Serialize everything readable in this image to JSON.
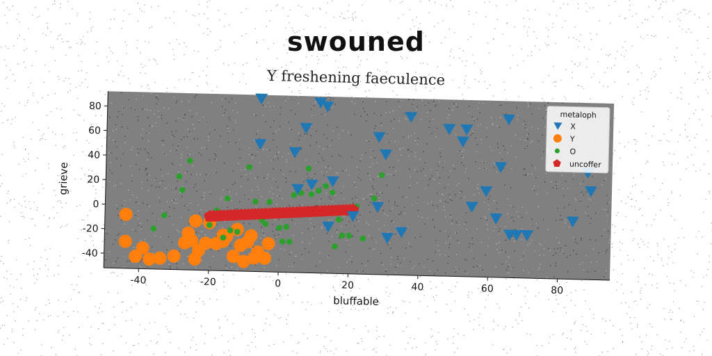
{
  "chart_data": {
    "type": "scatter",
    "title": "swouned",
    "subtitle": "Y freshening faeculence",
    "xlabel": "bluffable",
    "ylabel": "grieve",
    "xlim": [
      -50,
      95
    ],
    "ylim": [
      -52,
      92
    ],
    "xticks": [
      -40,
      -20,
      0,
      20,
      40,
      60,
      80
    ],
    "yticks": [
      -40,
      -20,
      0,
      20,
      40,
      60,
      80
    ],
    "grid": false,
    "legend": {
      "title": "metaloph",
      "placement": "top-right"
    },
    "colors": {
      "X": "#1f77b4",
      "Y": "#ff7f0e",
      "O": "#2ca02c",
      "uncoffer": "#d62728",
      "plot_bg": "#808080"
    },
    "series": [
      {
        "name": "X",
        "marker": "triangle-down",
        "x": [
          -6,
          11,
          13,
          -6,
          7,
          4,
          5,
          9,
          15,
          14,
          21,
          28,
          30,
          28,
          35,
          31,
          37,
          48,
          53,
          52,
          65,
          63,
          59,
          55,
          62,
          66,
          68,
          71,
          84,
          88,
          89
        ],
        "y": [
          89,
          87,
          84,
          52,
          66,
          46,
          16,
          20,
          23,
          -14,
          -5,
          60,
          46,
          3,
          -17,
          -22,
          77,
          68,
          68,
          58,
          77,
          38,
          18,
          5,
          -4,
          -17,
          -17,
          -17,
          -5,
          35,
          20
        ]
      },
      {
        "name": "Y",
        "marker": "circle",
        "x": [
          -44,
          -44,
          -41,
          -39,
          -37,
          -34,
          -30,
          -27,
          -25,
          -24,
          -23,
          -21,
          -18,
          -16,
          -15,
          -13,
          -11,
          -10,
          -9,
          -8,
          -7,
          -6,
          -4,
          -24,
          -20,
          -12,
          -16,
          -26,
          -3
        ],
        "y": [
          -8,
          -30,
          -42,
          -35,
          -44,
          -43,
          -41,
          -30,
          -28,
          -43,
          -36,
          -30,
          -30,
          -28,
          -24,
          -40,
          -31,
          -44,
          -28,
          -23,
          -41,
          -36,
          -41,
          -12,
          -13,
          -18,
          -23,
          -22,
          -29
        ]
      },
      {
        "name": "O",
        "marker": "point",
        "x": [
          -26,
          -29,
          -28,
          -36,
          -33,
          -18,
          -16,
          -14,
          -9,
          -7,
          -4,
          -3,
          0,
          1,
          3,
          4,
          6,
          8,
          9,
          11,
          13,
          15,
          16,
          18,
          20,
          22,
          24,
          27,
          29,
          -20,
          -12,
          -5,
          5,
          17,
          -15,
          2
        ],
        "y": [
          37,
          24,
          13,
          -19,
          -8,
          -3,
          -25,
          -19,
          33,
          5,
          -13,
          5,
          -16,
          -27,
          -27,
          11,
          13,
          33,
          12,
          15,
          19,
          14,
          -30,
          -21,
          -21,
          3,
          -23,
          10,
          29,
          -15,
          -20,
          -10,
          -5,
          -8,
          7,
          -15
        ]
      },
      {
        "name": "uncoffer",
        "marker": "pentagon",
        "x": [
          -20.0,
          -19.0,
          -18.0,
          -17.0,
          -16.0,
          -15.0,
          -14.0,
          -13.0,
          -12.0,
          -11.0,
          -10.0,
          -9.0,
          -8.0,
          -7.0,
          -6.0,
          -5.0,
          -4.0,
          -3.0,
          -2.0,
          -1.0,
          0.0,
          1.0,
          2.0,
          3.0,
          4.0,
          5.0,
          6.0,
          7.0,
          8.0,
          9.0,
          10.0,
          11.0,
          12.0,
          13.0,
          14.0,
          15.0,
          16.0,
          17.0,
          18.0,
          19.0,
          20.0,
          21.0
        ],
        "y": [
          -8.0,
          -7.8,
          -7.6,
          -7.4,
          -7.2,
          -7.0,
          -6.8,
          -6.6,
          -6.4,
          -6.2,
          -6.0,
          -5.8,
          -5.6,
          -5.4,
          -5.2,
          -5.0,
          -4.8,
          -4.6,
          -4.4,
          -4.2,
          -4.0,
          -3.8,
          -3.6,
          -3.4,
          -3.2,
          -3.0,
          -2.8,
          -2.6,
          -2.4,
          -2.2,
          -2.0,
          -1.8,
          -1.6,
          -1.4,
          -1.2,
          -1.0,
          -0.8,
          -0.6,
          -0.4,
          -0.2,
          0.0,
          0.2
        ]
      }
    ]
  }
}
